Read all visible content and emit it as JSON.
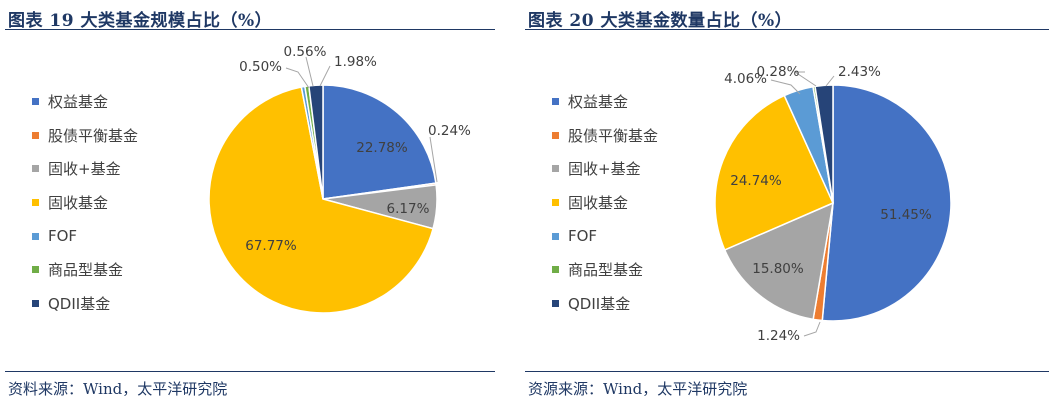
{
  "chart_data": [
    {
      "type": "pie",
      "title": "图表 19 大类基金规模占比（%）",
      "source": "资料来源：Wind，太平洋研究院",
      "legend_position": "left",
      "categories": [
        "权益基金",
        "股债平衡基金",
        "固收+基金",
        "固收基金",
        "FOF",
        "商品型基金",
        "QDII基金"
      ],
      "values": [
        22.78,
        0.24,
        6.17,
        67.77,
        0.5,
        0.56,
        1.98
      ],
      "labels": [
        "22.78%",
        "0.24%",
        "6.17%",
        "67.77%",
        "0.50%",
        "0.56%",
        "1.98%"
      ],
      "colors": [
        "#4472c4",
        "#ed7d31",
        "#a5a5a5",
        "#ffc000",
        "#5b9bd5",
        "#70ad47",
        "#264478"
      ]
    },
    {
      "type": "pie",
      "title": "图表 20 大类基金数量占比（%）",
      "source": "资源来源：Wind，太平洋研究院",
      "legend_position": "left",
      "categories": [
        "权益基金",
        "股债平衡基金",
        "固收+基金",
        "固收基金",
        "FOF",
        "商品型基金",
        "QDII基金"
      ],
      "values": [
        51.45,
        1.24,
        15.8,
        24.74,
        4.06,
        0.28,
        2.43
      ],
      "labels": [
        "51.45%",
        "1.24%",
        "15.80%",
        "24.74%",
        "4.06%",
        "0.28%",
        "2.43%"
      ],
      "colors": [
        "#4472c4",
        "#ed7d31",
        "#a5a5a5",
        "#ffc000",
        "#5b9bd5",
        "#70ad47",
        "#264478"
      ]
    }
  ]
}
